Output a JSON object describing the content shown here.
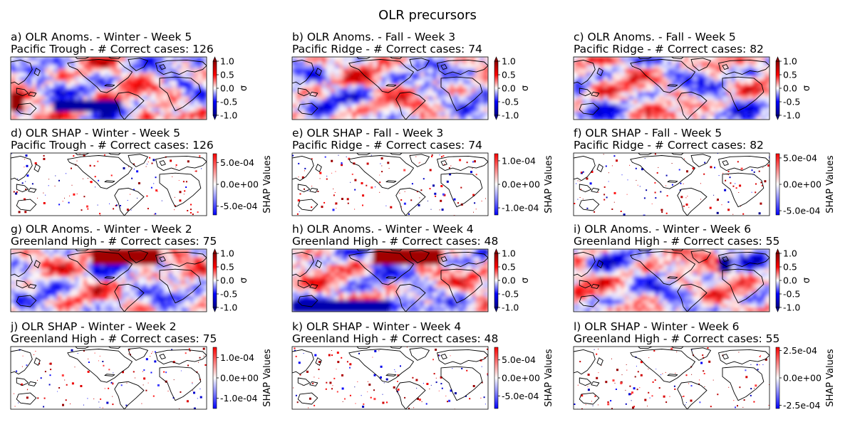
{
  "figure": {
    "title": "OLR precursors"
  },
  "colors": {
    "cmap_low": "#00008b",
    "cmap_mid_low": "#0000ff",
    "cmap_center": "#ffffff",
    "cmap_mid_high": "#ff0000",
    "cmap_high": "#8b0000",
    "coast": "#000000"
  },
  "chart_data": [
    {
      "type": "heatmap",
      "id": "a",
      "title_line1": "a) OLR Anoms. - Winter - Week 5",
      "title_line2": "Pacific Trough - # Correct cases: 126",
      "colorbar_label": "σ",
      "clim": [
        -1.0,
        1.0
      ],
      "colorbar_ticks": [
        "1.0",
        "0.5",
        "0.0",
        "-0.5",
        "-1.0"
      ],
      "extend": "both",
      "variable": "OLR anomaly",
      "season": "Winter",
      "week": 5,
      "regime": "Pacific Trough",
      "correct_cases": 126
    },
    {
      "type": "heatmap",
      "id": "b",
      "title_line1": "b) OLR Anoms. - Fall - Week 3",
      "title_line2": "Pacific Ridge - # Correct cases: 74",
      "colorbar_label": "σ",
      "clim": [
        -1.0,
        1.0
      ],
      "colorbar_ticks": [
        "1.0",
        "0.5",
        "0.0",
        "-0.5",
        "-1.0"
      ],
      "extend": "both",
      "variable": "OLR anomaly",
      "season": "Fall",
      "week": 3,
      "regime": "Pacific Ridge",
      "correct_cases": 74
    },
    {
      "type": "heatmap",
      "id": "c",
      "title_line1": "c) OLR Anoms. - Fall - Week 5",
      "title_line2": "Pacific Ridge - # Correct cases: 82",
      "colorbar_label": "σ",
      "clim": [
        -1.0,
        1.0
      ],
      "colorbar_ticks": [
        "1.0",
        "0.5",
        "0.0",
        "-0.5",
        "-1.0"
      ],
      "extend": "both",
      "variable": "OLR anomaly",
      "season": "Fall",
      "week": 5,
      "regime": "Pacific Ridge",
      "correct_cases": 82
    },
    {
      "type": "heatmap",
      "id": "d",
      "title_line1": "d) OLR SHAP - Winter - Week 5",
      "title_line2": "Pacific Trough - # Correct cases: 126",
      "colorbar_label": "SHAP Values",
      "clim": [
        -0.0007,
        0.0007
      ],
      "colorbar_ticks": [
        "5.0e-04",
        "0.0e+00",
        "-5.0e-04"
      ],
      "extend": "neither",
      "variable": "SHAP",
      "season": "Winter",
      "week": 5,
      "regime": "Pacific Trough",
      "correct_cases": 126
    },
    {
      "type": "heatmap",
      "id": "e",
      "title_line1": "e) OLR SHAP - Fall - Week 3",
      "title_line2": "Pacific Ridge - # Correct cases: 74",
      "colorbar_label": "SHAP Values",
      "clim": [
        -0.00013,
        0.00013
      ],
      "colorbar_ticks": [
        "1.0e-04",
        "0.0e+00",
        "-1.0e-04"
      ],
      "extend": "neither",
      "variable": "SHAP",
      "season": "Fall",
      "week": 3,
      "regime": "Pacific Ridge",
      "correct_cases": 74
    },
    {
      "type": "heatmap",
      "id": "f",
      "title_line1": "f) OLR SHAP - Fall - Week 5",
      "title_line2": "Pacific Ridge - # Correct cases: 82",
      "colorbar_label": "SHAP Values",
      "clim": [
        -0.00058,
        0.00058
      ],
      "colorbar_ticks": [
        "5.0e-04",
        "0.0e+00",
        "-5.0e-04"
      ],
      "extend": "neither",
      "variable": "SHAP",
      "season": "Fall",
      "week": 5,
      "regime": "Pacific Ridge",
      "correct_cases": 82
    },
    {
      "type": "heatmap",
      "id": "g",
      "title_line1": "g) OLR Anoms. - Winter - Week 2",
      "title_line2": "Greenland High - # Correct cases: 75",
      "colorbar_label": "σ",
      "clim": [
        -1.0,
        1.0
      ],
      "colorbar_ticks": [
        "1.0",
        "0.5",
        "0.0",
        "-0.5",
        "-1.0"
      ],
      "extend": "both",
      "variable": "OLR anomaly",
      "season": "Winter",
      "week": 2,
      "regime": "Greenland High",
      "correct_cases": 75
    },
    {
      "type": "heatmap",
      "id": "h",
      "title_line1": "h) OLR Anoms. - Winter - Week 4",
      "title_line2": "Greenland High - # Correct cases: 48",
      "colorbar_label": "σ",
      "clim": [
        -1.0,
        1.0
      ],
      "colorbar_ticks": [
        "1.0",
        "0.5",
        "0.0",
        "-0.5",
        "-1.0"
      ],
      "extend": "both",
      "variable": "OLR anomaly",
      "season": "Winter",
      "week": 4,
      "regime": "Greenland High",
      "correct_cases": 48
    },
    {
      "type": "heatmap",
      "id": "i",
      "title_line1": "i) OLR Anoms. - Winter - Week 6",
      "title_line2": "Greenland High - # Correct cases: 55",
      "colorbar_label": "σ",
      "clim": [
        -1.0,
        1.0
      ],
      "colorbar_ticks": [
        "1.0",
        "0.5",
        "0.0",
        "-0.5",
        "-1.0"
      ],
      "extend": "both",
      "variable": "OLR anomaly",
      "season": "Winter",
      "week": 6,
      "regime": "Greenland High",
      "correct_cases": 55
    },
    {
      "type": "heatmap",
      "id": "j",
      "title_line1": "j) OLR SHAP - Winter - Week 2",
      "title_line2": "Greenland High - # Correct cases: 75",
      "colorbar_label": "SHAP Values",
      "clim": [
        -0.00015,
        0.00015
      ],
      "colorbar_ticks": [
        "1.0e-04",
        "0.0e+00",
        "-1.0e-04"
      ],
      "extend": "neither",
      "variable": "SHAP",
      "season": "Winter",
      "week": 2,
      "regime": "Greenland High",
      "correct_cases": 75
    },
    {
      "type": "heatmap",
      "id": "k",
      "title_line1": "k) OLR SHAP - Winter - Week 4",
      "title_line2": "Greenland High - # Correct cases: 48",
      "colorbar_label": "SHAP Values",
      "clim": [
        -0.00085,
        0.00085
      ],
      "colorbar_ticks": [
        "5.0e-04",
        "0.0e+00",
        "-5.0e-04"
      ],
      "extend": "neither",
      "variable": "SHAP",
      "season": "Winter",
      "week": 4,
      "regime": "Greenland High",
      "correct_cases": 48
    },
    {
      "type": "heatmap",
      "id": "l",
      "title_line1": "l) OLR SHAP - Winter - Week 6",
      "title_line2": "Greenland High - # Correct cases: 55",
      "colorbar_label": "SHAP Values",
      "clim": [
        -0.00028,
        0.00028
      ],
      "colorbar_ticks": [
        "2.5e-04",
        "0.0e+00",
        "-2.5e-04"
      ],
      "extend": "neither",
      "variable": "SHAP",
      "season": "Winter",
      "week": 6,
      "regime": "Greenland High",
      "correct_cases": 55
    }
  ]
}
